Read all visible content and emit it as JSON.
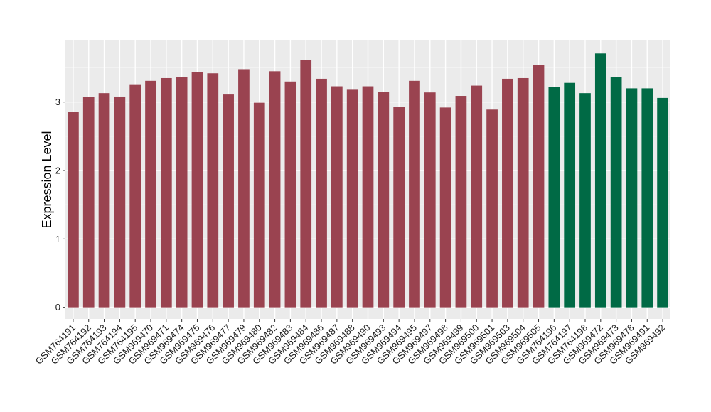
{
  "chart_data": {
    "type": "bar",
    "ylabel": "Expression Level",
    "xlabel": "",
    "title": "",
    "ylim": [
      -0.17,
      3.9
    ],
    "y_ticks": [
      0,
      1,
      2,
      3
    ],
    "grid": true,
    "background": "#EBEBEB",
    "categories": [
      "GSM764191",
      "GSM764192",
      "GSM764193",
      "GSM764194",
      "GSM764195",
      "GSM969470",
      "GSM969471",
      "GSM969474",
      "GSM969475",
      "GSM969476",
      "GSM969477",
      "GSM969479",
      "GSM969480",
      "GSM969482",
      "GSM969483",
      "GSM969484",
      "GSM969486",
      "GSM969487",
      "GSM969488",
      "GSM969490",
      "GSM969493",
      "GSM969494",
      "GSM969495",
      "GSM969497",
      "GSM969498",
      "GSM969499",
      "GSM969500",
      "GSM969501",
      "GSM969503",
      "GSM969504",
      "GSM969505",
      "GSM764196",
      "GSM764197",
      "GSM764198",
      "GSM969472",
      "GSM969473",
      "GSM969478",
      "GSM969491",
      "GSM969492"
    ],
    "values": [
      2.86,
      3.07,
      3.13,
      3.08,
      3.26,
      3.31,
      3.35,
      3.36,
      3.44,
      3.42,
      3.11,
      3.48,
      2.99,
      3.45,
      3.3,
      3.61,
      3.34,
      3.23,
      3.19,
      3.23,
      3.15,
      2.93,
      3.31,
      3.14,
      2.92,
      3.09,
      3.24,
      2.89,
      3.34,
      3.35,
      3.54,
      3.22,
      3.28,
      3.13,
      3.71,
      3.36,
      3.2,
      3.2,
      3.06
    ],
    "groups": [
      "a",
      "a",
      "a",
      "a",
      "a",
      "a",
      "a",
      "a",
      "a",
      "a",
      "a",
      "a",
      "a",
      "a",
      "a",
      "a",
      "a",
      "a",
      "a",
      "a",
      "a",
      "a",
      "a",
      "a",
      "a",
      "a",
      "a",
      "a",
      "a",
      "a",
      "a",
      "b",
      "b",
      "b",
      "b",
      "b",
      "b",
      "b",
      "b"
    ],
    "group_colors": {
      "a": "#9A4350",
      "b": "#006A45"
    }
  }
}
